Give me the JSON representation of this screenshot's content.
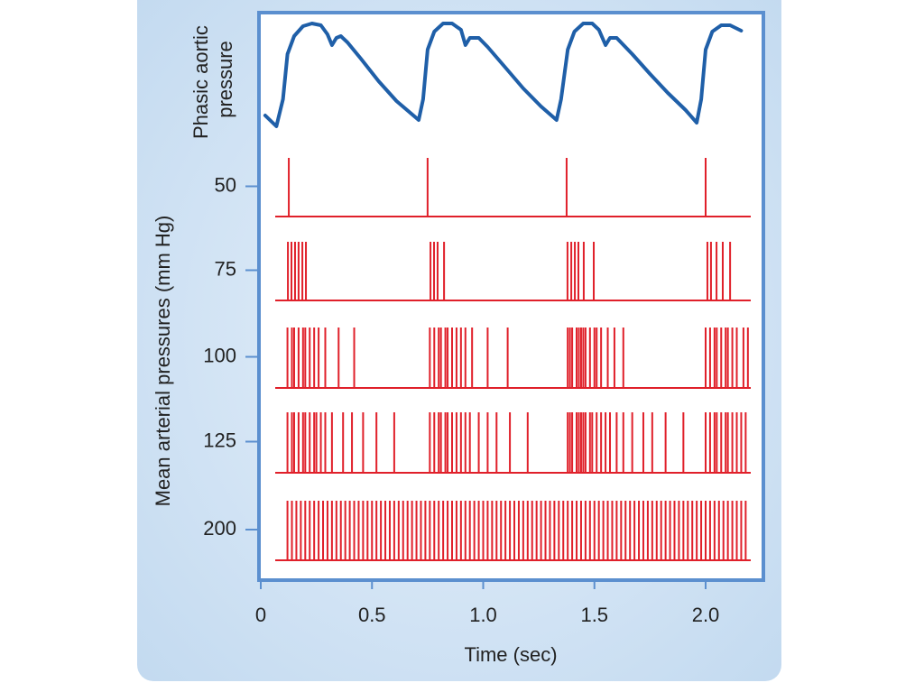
{
  "chart_data": {
    "type": "spike-train",
    "pressure_label": [
      "Phasic aortic",
      "pressure"
    ],
    "y_label": "Mean arterial pressures (mm Hg)",
    "x_label": "Time (sec)",
    "xlim": [
      0,
      2.26
    ],
    "xticks": [
      0,
      0.5,
      {
        "value": 1,
        "label": "1.0"
      },
      1.5,
      {
        "value": 2,
        "label": "2.0"
      }
    ],
    "pressure": {
      "color": "#1f5fa8",
      "ylim": [
        0,
        130
      ],
      "x": [
        0.02,
        0.07,
        0.1,
        0.12,
        0.15,
        0.19,
        0.23,
        0.27,
        0.3,
        0.32,
        0.34,
        0.36,
        0.39,
        0.45,
        0.53,
        0.61,
        0.71,
        0.73,
        0.75,
        0.78,
        0.82,
        0.86,
        0.9,
        0.92,
        0.94,
        0.98,
        1.02,
        1.1,
        1.18,
        1.26,
        1.33,
        1.35,
        1.38,
        1.41,
        1.45,
        1.49,
        1.52,
        1.55,
        1.57,
        1.6,
        1.67,
        1.75,
        1.83,
        1.91,
        1.96,
        1.98,
        2.0,
        2.03,
        2.07,
        2.11,
        2.16
      ],
      "values": [
        22,
        10,
        40,
        90,
        110,
        121,
        124,
        122,
        112,
        100,
        108,
        110,
        103,
        85,
        60,
        38,
        17,
        40,
        95,
        115,
        124,
        124,
        117,
        100,
        108,
        108,
        98,
        75,
        52,
        32,
        17,
        40,
        95,
        115,
        124,
        124,
        117,
        100,
        108,
        108,
        90,
        68,
        47,
        28,
        14,
        40,
        95,
        115,
        122,
        122,
        116
      ]
    },
    "spike_color": "#e0202a",
    "rows": [
      {
        "name": "50",
        "spikes": [
          0.126,
          0.75,
          1.375,
          2.0
        ]
      },
      {
        "name": "75",
        "spikes": [
          0.122,
          0.138,
          0.154,
          0.17,
          0.187,
          0.203,
          0.763,
          0.779,
          0.795,
          0.824,
          1.379,
          1.396,
          1.412,
          1.428,
          1.452,
          1.497,
          2.008,
          2.024,
          2.049,
          2.077,
          2.11
        ]
      },
      {
        "name": "100",
        "spikes": [
          0.12,
          0.14,
          0.15,
          0.17,
          0.19,
          0.2,
          0.22,
          0.24,
          0.26,
          0.29,
          0.35,
          0.42,
          0.76,
          0.78,
          0.8,
          0.81,
          0.83,
          0.84,
          0.86,
          0.88,
          0.9,
          0.92,
          0.95,
          1.02,
          1.11,
          1.38,
          1.39,
          1.4,
          1.42,
          1.43,
          1.44,
          1.45,
          1.46,
          1.48,
          1.5,
          1.51,
          1.53,
          1.56,
          1.59,
          1.63,
          2.0,
          2.02,
          2.04,
          2.05,
          2.07,
          2.09,
          2.1,
          2.12,
          2.14,
          2.17,
          2.19
        ]
      },
      {
        "name": "125",
        "spikes": [
          0.12,
          0.14,
          0.15,
          0.17,
          0.19,
          0.2,
          0.22,
          0.24,
          0.25,
          0.27,
          0.29,
          0.32,
          0.37,
          0.41,
          0.46,
          0.52,
          0.6,
          0.76,
          0.78,
          0.8,
          0.81,
          0.83,
          0.84,
          0.86,
          0.88,
          0.9,
          0.92,
          0.94,
          0.98,
          1.02,
          1.06,
          1.12,
          1.2,
          1.38,
          1.39,
          1.4,
          1.42,
          1.43,
          1.44,
          1.45,
          1.46,
          1.48,
          1.49,
          1.51,
          1.53,
          1.55,
          1.57,
          1.6,
          1.63,
          1.67,
          1.72,
          1.76,
          1.82,
          1.9,
          2.0,
          2.02,
          2.04,
          2.05,
          2.07,
          2.09,
          2.1,
          2.12,
          2.14,
          2.16,
          2.18
        ]
      },
      {
        "name": "200",
        "spikes": [
          0.12,
          0.14,
          0.16,
          0.18,
          0.2,
          0.22,
          0.24,
          0.26,
          0.28,
          0.3,
          0.32,
          0.34,
          0.36,
          0.38,
          0.4,
          0.42,
          0.44,
          0.46,
          0.48,
          0.5,
          0.52,
          0.54,
          0.56,
          0.58,
          0.6,
          0.62,
          0.64,
          0.66,
          0.68,
          0.7,
          0.72,
          0.74,
          0.76,
          0.78,
          0.8,
          0.82,
          0.84,
          0.86,
          0.88,
          0.9,
          0.92,
          0.94,
          0.96,
          0.98,
          1.0,
          1.02,
          1.04,
          1.06,
          1.08,
          1.1,
          1.12,
          1.14,
          1.16,
          1.18,
          1.2,
          1.22,
          1.24,
          1.26,
          1.28,
          1.3,
          1.32,
          1.34,
          1.36,
          1.38,
          1.4,
          1.42,
          1.44,
          1.46,
          1.48,
          1.5,
          1.52,
          1.54,
          1.56,
          1.58,
          1.6,
          1.62,
          1.64,
          1.66,
          1.68,
          1.7,
          1.72,
          1.74,
          1.76,
          1.78,
          1.8,
          1.82,
          1.84,
          1.86,
          1.88,
          1.9,
          1.92,
          1.94,
          1.96,
          1.98,
          2.0,
          2.02,
          2.04,
          2.06,
          2.08,
          2.1,
          2.12,
          2.14,
          2.16,
          2.18
        ]
      }
    ]
  }
}
